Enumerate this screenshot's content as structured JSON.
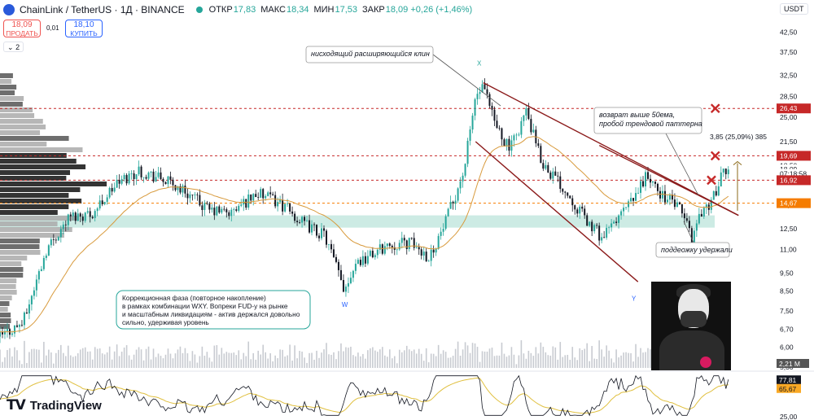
{
  "header": {
    "symbol": "ChainLink / TetherUS · 1Д · BINANCE",
    "open_label": "ОТКР",
    "open_value": "17,83",
    "high_label": "МАКС",
    "high_value": "18,34",
    "low_label": "МИН",
    "low_value": "17,53",
    "close_label": "ЗАКР",
    "close_value": "18,09 +0,26 (+1,46%)"
  },
  "trade": {
    "sell_price": "18,09",
    "sell_label": "ПРОДАТЬ",
    "spread": "0,01",
    "buy_price": "18,10",
    "buy_label": "КУПИТЬ"
  },
  "indicator_toggle": "2",
  "currency": "USDT",
  "brand": "TradingView",
  "colors": {
    "up": "#26a69a",
    "down": "#131722",
    "ema": "#d89a3c",
    "channel": "#8b1a1a",
    "level_red": "#c62828",
    "level_orange": "#f57c00",
    "zone": "#cdebe4",
    "rsi": "#131722",
    "rsi_ma": "#e0c040"
  },
  "chart_data": {
    "type": "candlestick",
    "title": "ChainLink / TetherUS · 1Д · BINANCE",
    "price_axis": {
      "scale": "log",
      "range": [
        5.6,
        45
      ],
      "tick_labels": [
        "42,50",
        "37,50",
        "32,50",
        "28,50",
        "25,00",
        "21,50",
        "18,50",
        "14,50",
        "12,50",
        "11,00",
        "9,50",
        "8,50",
        "7,50",
        "6,70",
        "6,00",
        "5,30"
      ]
    },
    "price_labels": [
      {
        "value": 26.43,
        "text": "26,43",
        "color": "#c62828"
      },
      {
        "value": 19.69,
        "text": "19,69",
        "color": "#c62828"
      },
      {
        "value": 18.09,
        "text": "18,09",
        "color": "#ffffff"
      },
      {
        "value": 17.6,
        "text": "07:18:58",
        "color": "#ffffff"
      },
      {
        "value": 16.92,
        "text": "16,92",
        "color": "#c62828"
      },
      {
        "value": 14.67,
        "text": "14,67",
        "color": "#f57c00"
      }
    ],
    "volume_label": "2,21 M",
    "rsi": {
      "range": [
        25,
        85
      ],
      "tick_labels": [
        "25,00"
      ],
      "values": [
        77.81,
        65.67
      ],
      "value_labels": [
        "77,81",
        "65,67"
      ]
    },
    "series_shape": [
      [
        0,
        6.4
      ],
      [
        0.03,
        7.0
      ],
      [
        0.06,
        11.0
      ],
      [
        0.09,
        13.5
      ],
      [
        0.12,
        13.8
      ],
      [
        0.15,
        16.5
      ],
      [
        0.18,
        18.0
      ],
      [
        0.21,
        17.0
      ],
      [
        0.24,
        15.8
      ],
      [
        0.27,
        14.0
      ],
      [
        0.3,
        13.8
      ],
      [
        0.33,
        15.6
      ],
      [
        0.36,
        14.8
      ],
      [
        0.39,
        13.0
      ],
      [
        0.42,
        12.0
      ],
      [
        0.445,
        8.6
      ],
      [
        0.46,
        10.2
      ],
      [
        0.48,
        10.6
      ],
      [
        0.5,
        11.3
      ],
      [
        0.53,
        11.5
      ],
      [
        0.555,
        10.5
      ],
      [
        0.575,
        12.8
      ],
      [
        0.6,
        18.0
      ],
      [
        0.615,
        28.5
      ],
      [
        0.625,
        30.0
      ],
      [
        0.64,
        24.0
      ],
      [
        0.66,
        20.5
      ],
      [
        0.68,
        26.0
      ],
      [
        0.7,
        19.0
      ],
      [
        0.72,
        17.0
      ],
      [
        0.74,
        15.0
      ],
      [
        0.76,
        13.0
      ],
      [
        0.78,
        11.8
      ],
      [
        0.8,
        13.5
      ],
      [
        0.82,
        15.0
      ],
      [
        0.835,
        17.5
      ],
      [
        0.85,
        15.8
      ],
      [
        0.87,
        14.8
      ],
      [
        0.885,
        13.5
      ],
      [
        0.895,
        11.8
      ],
      [
        0.905,
        13.8
      ],
      [
        0.92,
        14.8
      ],
      [
        0.935,
        17.6
      ],
      [
        0.945,
        18.09
      ]
    ],
    "channel": {
      "upper": [
        [
          0.625,
          31.0
        ],
        [
          0.955,
          13.6
        ]
      ],
      "lower": [
        [
          0.615,
          21.5
        ],
        [
          0.825,
          9.0
        ]
      ]
    },
    "trend_line": [
      [
        0.775,
        21.0
      ],
      [
        0.955,
        13.6
      ]
    ],
    "support_zone": [
      12.6,
      13.6
    ],
    "dashed_levels": [
      26.43,
      19.69,
      16.92,
      14.67
    ],
    "wave_labels": [
      {
        "text": "X",
        "x": 0.62,
        "y": 34.5
      },
      {
        "text": "W",
        "x": 0.445,
        "y": 7.7
      },
      {
        "text": "Y",
        "x": 0.82,
        "y": 8.0
      }
    ],
    "annotations": [
      {
        "text": "нисходящий расширяющийся клин"
      },
      {
        "text": "возврат выше 50ема,\nпробой трендовой паттерна"
      },
      {
        "text": "поддеожку удержали"
      },
      {
        "text": "3,85 (25,09%) 385"
      },
      {
        "text": "Коррекционная фаза (повторное накопление)\nв рамках комбинации WXY. Вопреки FUD-у на рынке\nи масштабным ликвидациям - актив держался довольно\nсильно, удерживая уровень"
      }
    ]
  }
}
